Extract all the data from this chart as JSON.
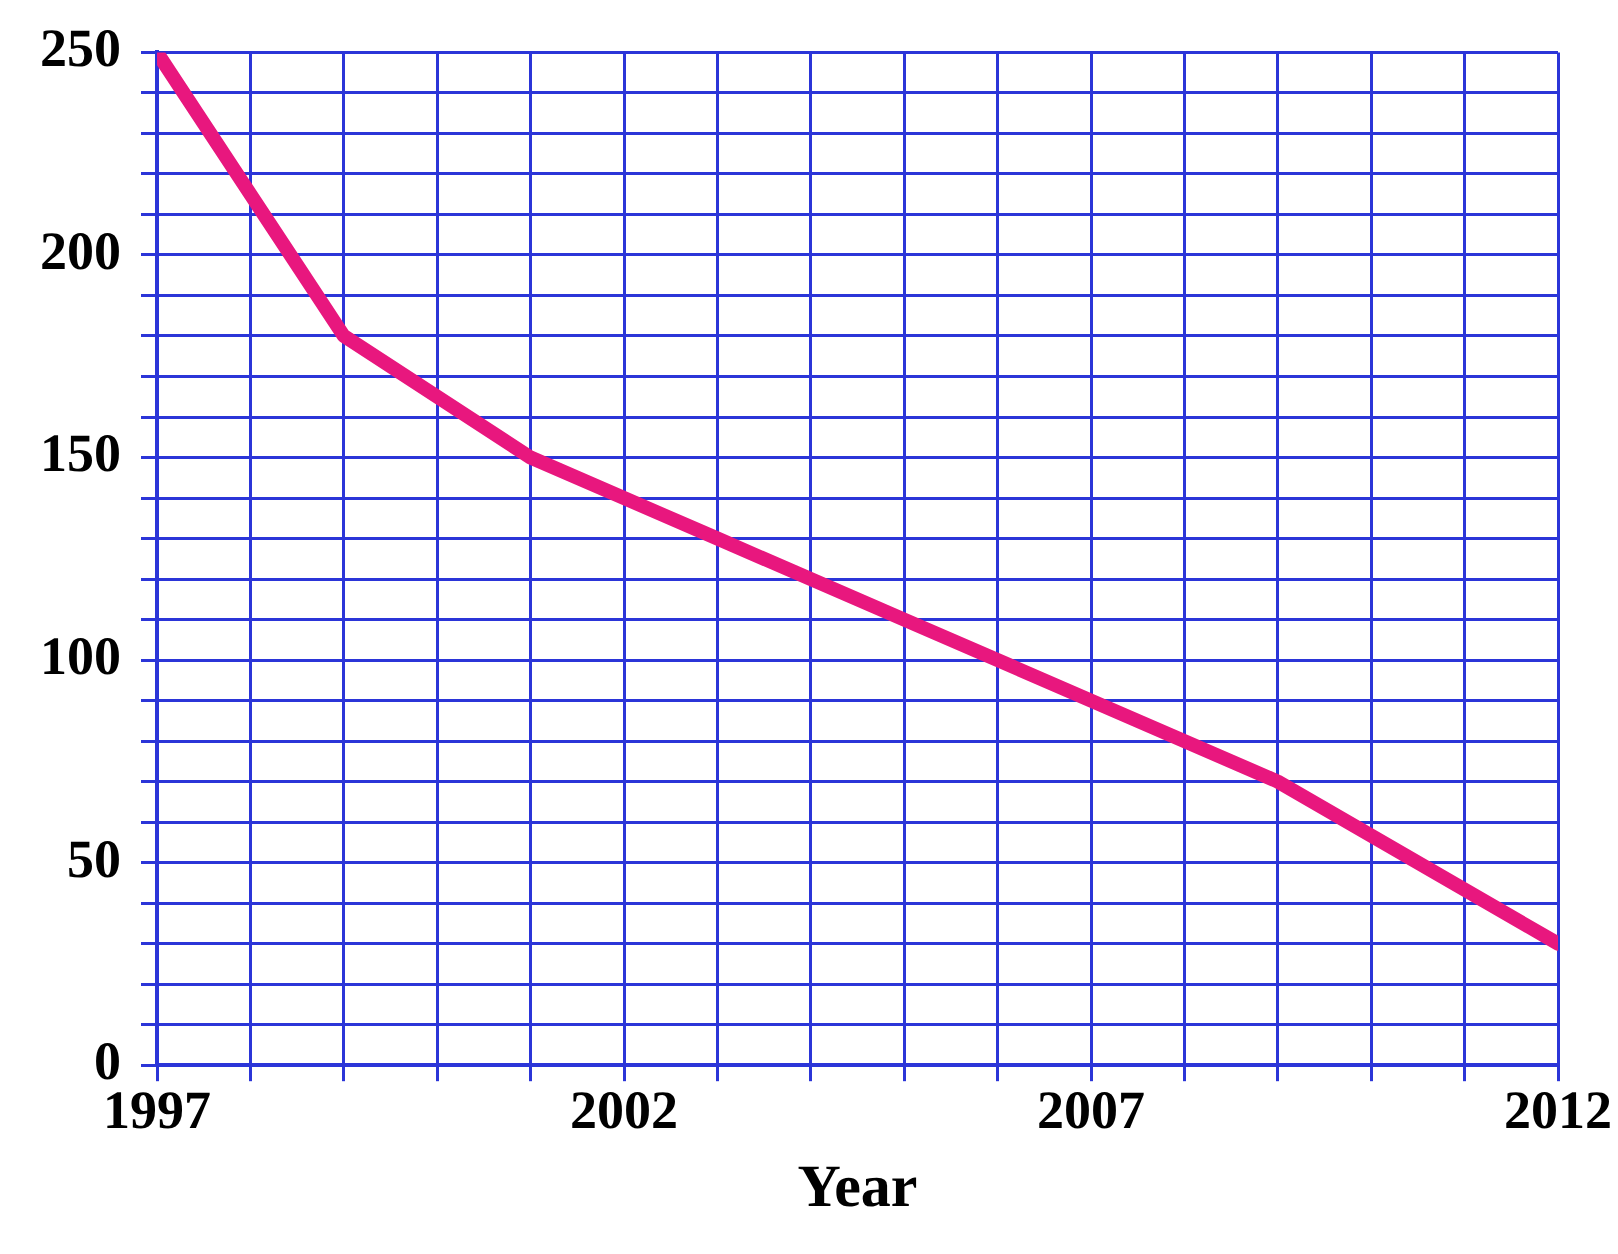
{
  "chart_data": {
    "type": "line",
    "xlabel": "Year",
    "x": [
      1997,
      1999,
      2001,
      2003,
      2005,
      2007,
      2009,
      2012
    ],
    "series": [
      {
        "color": "#e8177e",
        "values": [
          250,
          180,
          150,
          130,
          110,
          90,
          70,
          30
        ]
      }
    ],
    "xlim": [
      1997,
      2012
    ],
    "xticks": [
      1997,
      {
        "value": 1998,
        "label": null
      },
      {
        "value": 1999,
        "label": null
      },
      {
        "value": 2000,
        "label": null
      },
      {
        "value": 2001,
        "label": null
      },
      2002,
      {
        "value": 2003,
        "label": null
      },
      {
        "value": 2004,
        "label": null
      },
      {
        "value": 2005,
        "label": null
      },
      {
        "value": 2006,
        "label": null
      },
      2007,
      {
        "value": 2008,
        "label": null
      },
      {
        "value": 2009,
        "label": null
      },
      {
        "value": 2010,
        "label": null
      },
      {
        "value": 2011,
        "label": null
      },
      2012
    ],
    "ylim": [
      0,
      250
    ],
    "yticks": [
      0,
      {
        "value": 10,
        "label": null
      },
      {
        "value": 20,
        "label": null
      },
      {
        "value": 30,
        "label": null
      },
      {
        "value": 40,
        "label": null
      },
      50,
      {
        "value": 60,
        "label": null
      },
      {
        "value": 70,
        "label": null
      },
      {
        "value": 80,
        "label": null
      },
      {
        "value": 90,
        "label": null
      },
      100,
      {
        "value": 110,
        "label": null
      },
      {
        "value": 120,
        "label": null
      },
      {
        "value": 130,
        "label": null
      },
      {
        "value": 140,
        "label": null
      },
      150,
      {
        "value": 160,
        "label": null
      },
      {
        "value": 170,
        "label": null
      },
      {
        "value": 180,
        "label": null
      },
      {
        "value": 190,
        "label": null
      },
      200,
      {
        "value": 210,
        "label": null
      },
      {
        "value": 220,
        "label": null
      },
      {
        "value": 230,
        "label": null
      },
      {
        "value": 240,
        "label": null
      },
      250
    ],
    "grid": true,
    "legend": false,
    "marker": "none",
    "line_style": "solid"
  }
}
